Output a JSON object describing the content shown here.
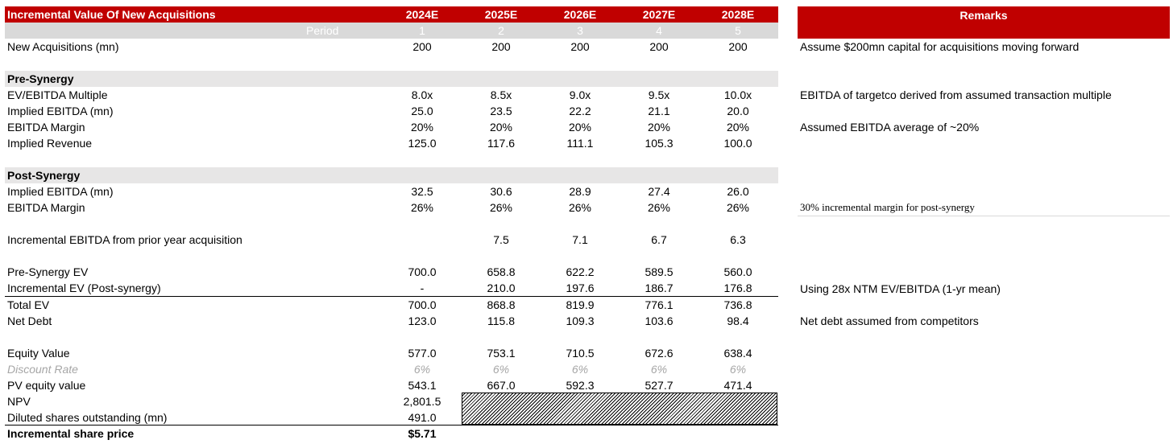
{
  "table": {
    "title": "Incremental Value Of New Acquisitions",
    "years": [
      "2024E",
      "2025E",
      "2026E",
      "2027E",
      "2028E"
    ],
    "period_label": "Period",
    "periods": [
      "1",
      "2",
      "3",
      "4",
      "5"
    ],
    "rows": {
      "new_acq": {
        "label": "New Acquisitions (mn)",
        "values": [
          "200",
          "200",
          "200",
          "200",
          "200"
        ]
      },
      "pre_section": "Pre-Synergy",
      "ev_ebitda": {
        "label": "EV/EBITDA Multiple",
        "values": [
          "8.0x",
          "8.5x",
          "9.0x",
          "9.5x",
          "10.0x"
        ]
      },
      "impl_ebitda": {
        "label": "Implied EBITDA (mn)",
        "values": [
          "25.0",
          "23.5",
          "22.2",
          "21.1",
          "20.0"
        ]
      },
      "ebitda_margin": {
        "label": "EBITDA Margin",
        "values": [
          "20%",
          "20%",
          "20%",
          "20%",
          "20%"
        ]
      },
      "impl_revenue": {
        "label": "Implied Revenue",
        "values": [
          "125.0",
          "117.6",
          "111.1",
          "105.3",
          "100.0"
        ]
      },
      "post_section": "Post-Synergy",
      "post_impl_ebitda": {
        "label": "Implied EBITDA  (mn)",
        "values": [
          "32.5",
          "30.6",
          "28.9",
          "27.4",
          "26.0"
        ]
      },
      "post_margin": {
        "label": "EBITDA Margin",
        "values": [
          "26%",
          "26%",
          "26%",
          "26%",
          "26%"
        ]
      },
      "incr_ebitda": {
        "label": "Incremental EBITDA from prior year acquisition",
        "values": [
          "",
          "7.5",
          "7.1",
          "6.7",
          "6.3"
        ]
      },
      "pre_ev": {
        "label": "Pre-Synergy EV",
        "values": [
          "700.0",
          "658.8",
          "622.2",
          "589.5",
          "560.0"
        ]
      },
      "incr_ev": {
        "label": "Incremental EV (Post-synergy)",
        "values": [
          "-",
          "210.0",
          "197.6",
          "186.7",
          "176.8"
        ]
      },
      "total_ev": {
        "label": "Total EV",
        "values": [
          "700.0",
          "868.8",
          "819.9",
          "776.1",
          "736.8"
        ]
      },
      "net_debt": {
        "label": "Net Debt",
        "values": [
          "123.0",
          "115.8",
          "109.3",
          "103.6",
          "98.4"
        ]
      },
      "equity": {
        "label": "Equity Value",
        "values": [
          "577.0",
          "753.1",
          "710.5",
          "672.6",
          "638.4"
        ]
      },
      "discount": {
        "label": "Discount Rate",
        "values": [
          "6%",
          "6%",
          "6%",
          "6%",
          "6%"
        ]
      },
      "pv_equity": {
        "label": "PV equity value",
        "values": [
          "543.1",
          "667.0",
          "592.3",
          "527.7",
          "471.4"
        ]
      },
      "npv": {
        "label": "NPV",
        "value": "2,801.5"
      },
      "diluted": {
        "label": "Diluted shares outstanding (mn)",
        "value": "491.0"
      },
      "share_price": {
        "label": "Incremental share price",
        "value": "$5.71"
      }
    }
  },
  "remarks": {
    "title": "Remarks",
    "new_acq": "Assume $200mn capital for acquisitions moving forward",
    "ev_ebitda": "EBITDA of targetco derived from assumed transaction multiple",
    "ebitda_margin": "Assumed EBITDA average of ~20%",
    "post_margin": "30% incremental margin for post-synergy",
    "incr_ev": "Using 28x NTM EV/EBITDA (1-yr mean)",
    "net_debt": "Net debt assumed from competitors"
  },
  "colors": {
    "header_red": "#c00000",
    "period_gray": "#d9d9d9",
    "section_gray": "#e7e6e6",
    "muted_text": "#a6a6a6"
  }
}
